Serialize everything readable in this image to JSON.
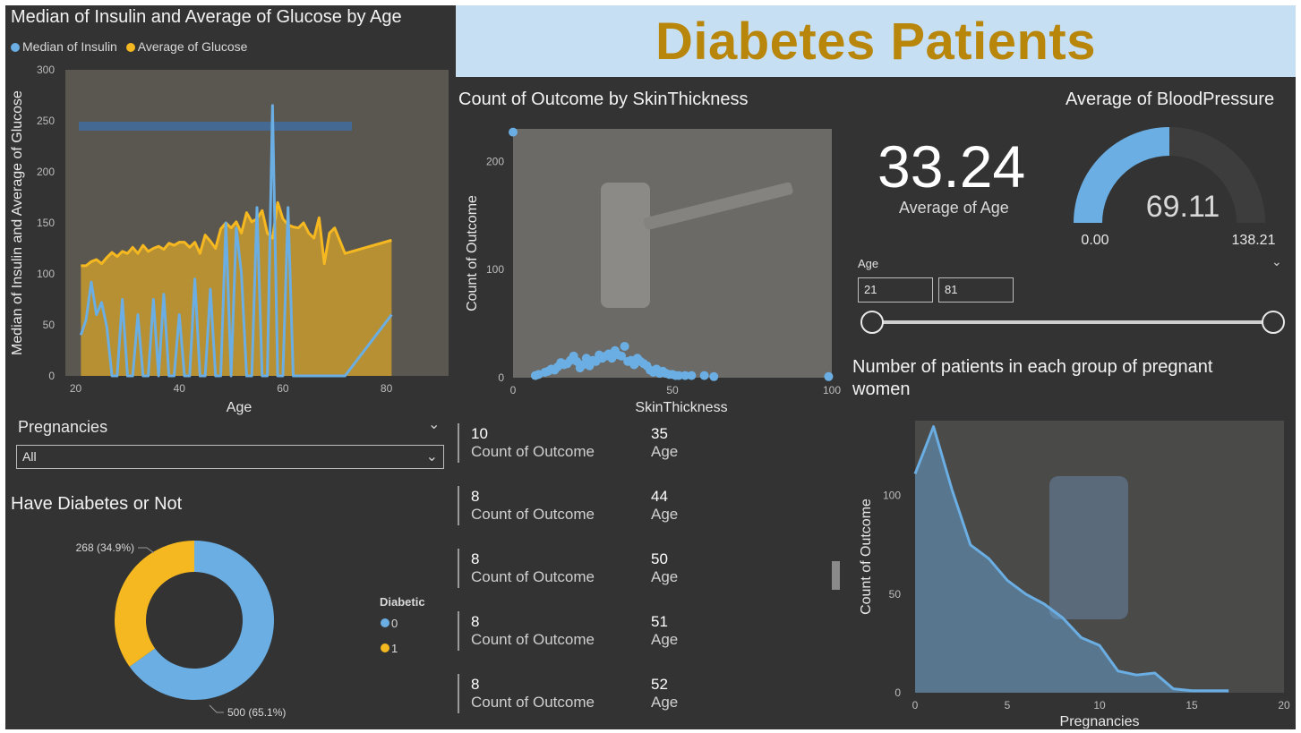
{
  "banner": {
    "title": "Diabetes Patients"
  },
  "colors": {
    "insulin": "#6aaee3",
    "glucose": "#f5b820",
    "background": "#333333",
    "banner_bg": "#c7dff2",
    "banner_text": "#b8860b"
  },
  "line_chart": {
    "title": "Median of Insulin and Average of Glucose by Age",
    "legend": [
      {
        "label": "Median of Insulin",
        "color": "#6aaee3"
      },
      {
        "label": "Average of Glucose",
        "color": "#f5b820"
      }
    ]
  },
  "scatter_chart": {
    "title": "Count of Outcome by SkinThickness"
  },
  "kpi": {
    "value": "33.24",
    "label": "Average of Age"
  },
  "gauge": {
    "title": "Average of BloodPressure",
    "value_text": "69.11",
    "min_text": "0.00",
    "max_text": "138.21",
    "value": 69.11,
    "min": 0,
    "max": 138.21
  },
  "age_slicer": {
    "label": "Age",
    "from": "21",
    "to": "81",
    "chevron": "chevron-down-icon"
  },
  "pregnancies_slicer": {
    "label": "Pregnancies",
    "value": "All",
    "chevron": "chevron-down-icon"
  },
  "donut": {
    "title": "Have Diabetes or Not"
  },
  "area_chart": {
    "title_line1": "Number of patients in each group of pregnant",
    "title_line2": "women"
  },
  "cards": [
    {
      "count": "10",
      "count_label": "Count of Outcome",
      "age": "35",
      "age_label": "Age"
    },
    {
      "count": "8",
      "count_label": "Count of Outcome",
      "age": "44",
      "age_label": "Age"
    },
    {
      "count": "8",
      "count_label": "Count of Outcome",
      "age": "50",
      "age_label": "Age"
    },
    {
      "count": "8",
      "count_label": "Count of Outcome",
      "age": "51",
      "age_label": "Age"
    },
    {
      "count": "8",
      "count_label": "Count of Outcome",
      "age": "52",
      "age_label": "Age"
    }
  ],
  "chart_data": [
    {
      "type": "line",
      "title": "Median of Insulin and Average of Glucose by Age",
      "xlabel": "Age",
      "ylabel": "Median of Insulin and Average of Glucose",
      "xlim": [
        18,
        92
      ],
      "ylim": [
        0,
        300
      ],
      "xticks": [
        20,
        40,
        60,
        80
      ],
      "yticks": [
        0,
        50,
        100,
        150,
        200,
        250,
        300
      ],
      "series": [
        {
          "name": "Average of Glucose",
          "color": "#f5b820",
          "area": true,
          "x": [
            21,
            22,
            23,
            24,
            25,
            26,
            27,
            28,
            29,
            30,
            31,
            32,
            33,
            34,
            35,
            36,
            37,
            38,
            39,
            40,
            41,
            42,
            43,
            44,
            45,
            46,
            47,
            48,
            49,
            50,
            51,
            52,
            53,
            54,
            55,
            56,
            57,
            58,
            59,
            60,
            61,
            62,
            63,
            64,
            65,
            66,
            67,
            68,
            69,
            70,
            72,
            81
          ],
          "y": [
            108,
            108,
            112,
            114,
            110,
            116,
            121,
            117,
            122,
            120,
            126,
            120,
            128,
            122,
            125,
            127,
            124,
            130,
            128,
            131,
            131,
            126,
            131,
            120,
            138,
            132,
            125,
            144,
            150,
            145,
            151,
            140,
            160,
            151,
            154,
            162,
            140,
            135,
            170,
            154,
            148,
            146,
            145,
            150,
            140,
            135,
            155,
            110,
            140,
            145,
            120,
            133
          ]
        },
        {
          "name": "Median of Insulin",
          "color": "#6aaee3",
          "area": false,
          "x": [
            21,
            22,
            23,
            24,
            25,
            26,
            27,
            28,
            29,
            30,
            31,
            32,
            33,
            34,
            35,
            36,
            37,
            38,
            39,
            40,
            41,
            42,
            43,
            44,
            45,
            46,
            47,
            48,
            49,
            50,
            51,
            52,
            53,
            54,
            55,
            56,
            57,
            58,
            59,
            60,
            61,
            62,
            63,
            64,
            65,
            66,
            67,
            68,
            69,
            70,
            72,
            81
          ],
          "y": [
            40,
            55,
            92,
            60,
            72,
            48,
            0,
            0,
            75,
            0,
            0,
            60,
            0,
            0,
            75,
            0,
            80,
            0,
            0,
            60,
            0,
            0,
            95,
            0,
            0,
            85,
            0,
            0,
            150,
            0,
            145,
            100,
            0,
            0,
            165,
            0,
            0,
            265,
            0,
            0,
            165,
            0,
            0,
            0,
            0,
            0,
            0,
            0,
            0,
            0,
            0,
            60
          ]
        }
      ]
    },
    {
      "type": "scatter",
      "title": "Count of Outcome by SkinThickness",
      "xlabel": "SkinThickness",
      "ylabel": "Count of Outcome",
      "xlim": [
        0,
        100
      ],
      "ylim": [
        0,
        230
      ],
      "xticks": [
        0,
        50,
        100
      ],
      "yticks": [
        0,
        100,
        200
      ],
      "color": "#6aaee3",
      "points": [
        [
          0,
          227
        ],
        [
          7,
          2
        ],
        [
          8,
          3
        ],
        [
          10,
          5
        ],
        [
          11,
          6
        ],
        [
          12,
          8
        ],
        [
          13,
          7
        ],
        [
          14,
          10
        ],
        [
          15,
          14
        ],
        [
          16,
          12
        ],
        [
          17,
          13
        ],
        [
          18,
          16
        ],
        [
          19,
          20
        ],
        [
          20,
          15
        ],
        [
          21,
          9
        ],
        [
          22,
          12
        ],
        [
          23,
          18
        ],
        [
          24,
          11
        ],
        [
          25,
          16
        ],
        [
          26,
          15
        ],
        [
          27,
          21
        ],
        [
          28,
          18
        ],
        [
          29,
          20
        ],
        [
          30,
          22
        ],
        [
          31,
          18
        ],
        [
          32,
          25
        ],
        [
          33,
          21
        ],
        [
          34,
          20
        ],
        [
          35,
          29
        ],
        [
          36,
          15
        ],
        [
          37,
          16
        ],
        [
          38,
          12
        ],
        [
          39,
          18
        ],
        [
          40,
          15
        ],
        [
          41,
          13
        ],
        [
          42,
          11
        ],
        [
          43,
          7
        ],
        [
          44,
          5
        ],
        [
          45,
          8
        ],
        [
          46,
          4
        ],
        [
          47,
          6
        ],
        [
          48,
          4
        ],
        [
          49,
          3
        ],
        [
          50,
          3
        ],
        [
          51,
          2
        ],
        [
          52,
          2
        ],
        [
          54,
          2
        ],
        [
          56,
          2
        ],
        [
          60,
          2
        ],
        [
          63,
          1
        ],
        [
          99,
          1
        ]
      ]
    },
    {
      "type": "pie",
      "title": "Have Diabetes or Not",
      "donut": true,
      "legend_title": "Diabetic",
      "slices": [
        {
          "label": "0",
          "value": 500,
          "data_label": "500 (65.1%)",
          "color": "#6aaee3"
        },
        {
          "label": "1",
          "value": 268,
          "data_label": "268 (34.9%)",
          "color": "#f5b820"
        }
      ]
    },
    {
      "type": "area",
      "title": "Number of patients in each group of pregnant women",
      "xlabel": "Pregnancies",
      "ylabel": "Count of Outcome",
      "xlim": [
        0,
        20
      ],
      "ylim": [
        0,
        138
      ],
      "xticks": [
        0,
        5,
        10,
        15,
        20
      ],
      "yticks": [
        0,
        50,
        100
      ],
      "color": "#6aaee3",
      "x": [
        0,
        1,
        2,
        3,
        4,
        5,
        6,
        7,
        8,
        9,
        10,
        11,
        12,
        13,
        14,
        15,
        17
      ],
      "y": [
        111,
        135,
        103,
        75,
        68,
        57,
        50,
        45,
        38,
        28,
        24,
        11,
        9,
        10,
        2,
        1,
        1
      ]
    }
  ]
}
